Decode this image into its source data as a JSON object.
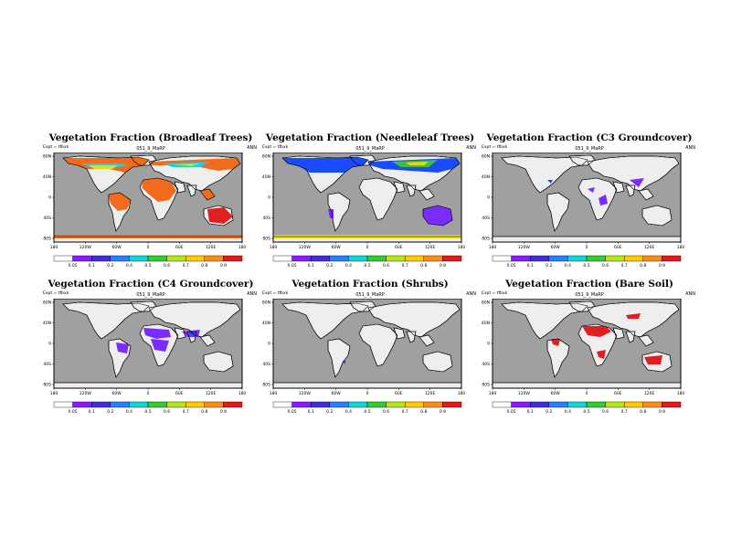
{
  "panels": [
    {
      "title": "Vegetation Fraction (Broadleaf Trees)",
      "left": "Expt = tfbxk",
      "center": "051_9_MaRP",
      "right": "ANN"
    },
    {
      "title": "Vegetation Fraction (Needleleaf Trees)",
      "left": "Expt = tfbxk",
      "center": "051_9_MaRP",
      "right": "ANN"
    },
    {
      "title": "Vegetation Fraction (C3 Groundcover)",
      "left": "Expt = tfbxk",
      "center": "051_9_MaRP",
      "right": "ANN"
    },
    {
      "title": "Vegetation Fraction (C4 Groundcover)",
      "left": "Expt = tfbxk",
      "center": "051_9_MaRP",
      "right": "ANN"
    },
    {
      "title": "Vegetation Fraction (Shrubs)",
      "left": "Expt = tfbxk",
      "center": "051_9_MaRP",
      "right": "ANN"
    },
    {
      "title": "Vegetation Fraction (Bare Soil)",
      "left": "Expt = tfbxk",
      "center": "051_9_MaRP",
      "right": "ANN"
    }
  ],
  "axes": {
    "lon_ticks": [
      "180",
      "120W",
      "60W",
      "0",
      "60E",
      "120E",
      "180"
    ],
    "lat_ticks": [
      "80N",
      "40N",
      "0",
      "40S",
      "80S"
    ]
  },
  "colorbar": {
    "labels": [
      "0.05",
      "0.1",
      "0.2",
      "0.4",
      "0.5",
      "0.6",
      "0.7",
      "0.8",
      "0.9"
    ],
    "colors": [
      "#ffffff",
      "#8c1aff",
      "#3f2fd8",
      "#2a7fff",
      "#16d6d6",
      "#33cc33",
      "#b8e61a",
      "#ffcc00",
      "#ff8c1a",
      "#e61a1a"
    ]
  },
  "colors": {
    "ocean": "#a0a0a0",
    "land_empty": "#eeeeee",
    "orange": "#f26b1d",
    "red": "#e02020",
    "blue": "#1a4cff",
    "purple": "#7a2cff",
    "cyan": "#1ad0e6",
    "yellow": "#e6d81a",
    "green": "#3fbf3f"
  }
}
